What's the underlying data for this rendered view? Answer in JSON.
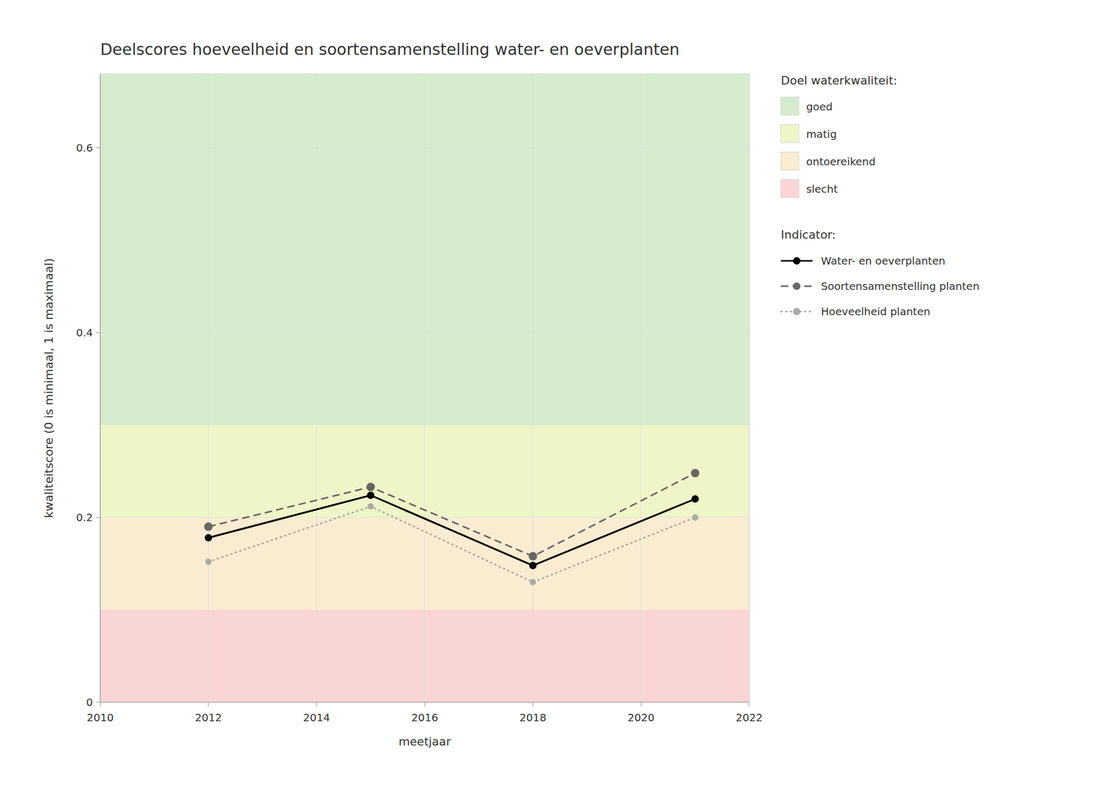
{
  "chart_data": {
    "type": "line",
    "title": "Deelscores hoeveelheid en soortensamenstelling water- en oeverplanten",
    "x_label": "meetjaar",
    "y_label": "kwaliteitscore (0 is minimaal, 1 is maximaal)",
    "x": [
      2012,
      2015,
      2018,
      2021
    ],
    "series": [
      {
        "name": "Water- en oeverplanten",
        "color": "#000000",
        "line_style": "solid",
        "marker": "circle",
        "values": [
          0.178,
          0.224,
          0.148,
          0.22
        ]
      },
      {
        "name": "Soortensamenstelling planten",
        "color": "#666666",
        "line_style": "dashed",
        "marker": "circle",
        "values": [
          0.19,
          0.233,
          0.158,
          0.248
        ]
      },
      {
        "name": "Hoeveelheid planten",
        "color": "#aaaaaa",
        "line_style": "dotted",
        "marker": "circle",
        "values": [
          0.152,
          0.212,
          0.13,
          0.2
        ]
      }
    ],
    "xlim": [
      2010,
      2022
    ],
    "ylim": [
      0.0,
      0.68
    ],
    "xticks": [
      2010,
      2012,
      2014,
      2016,
      2018,
      2020,
      2022
    ],
    "yticks": [
      0.0,
      0.2,
      0.4,
      0.6
    ],
    "grid": true,
    "legend": "right",
    "legend_title": "Indicator:",
    "band_legend_title": "Doel waterkwaliteit:",
    "bands": [
      {
        "name": "goed",
        "color": "#d5edce",
        "range": [
          0.3,
          0.68
        ]
      },
      {
        "name": "matig",
        "color": "#f0f5c8",
        "range": [
          0.2,
          0.3
        ]
      },
      {
        "name": "ontoereikend",
        "color": "#faecd0",
        "range": [
          0.1,
          0.2
        ]
      },
      {
        "name": "slecht",
        "color": "#fad5d5",
        "range": [
          0.0,
          0.1
        ]
      }
    ]
  }
}
